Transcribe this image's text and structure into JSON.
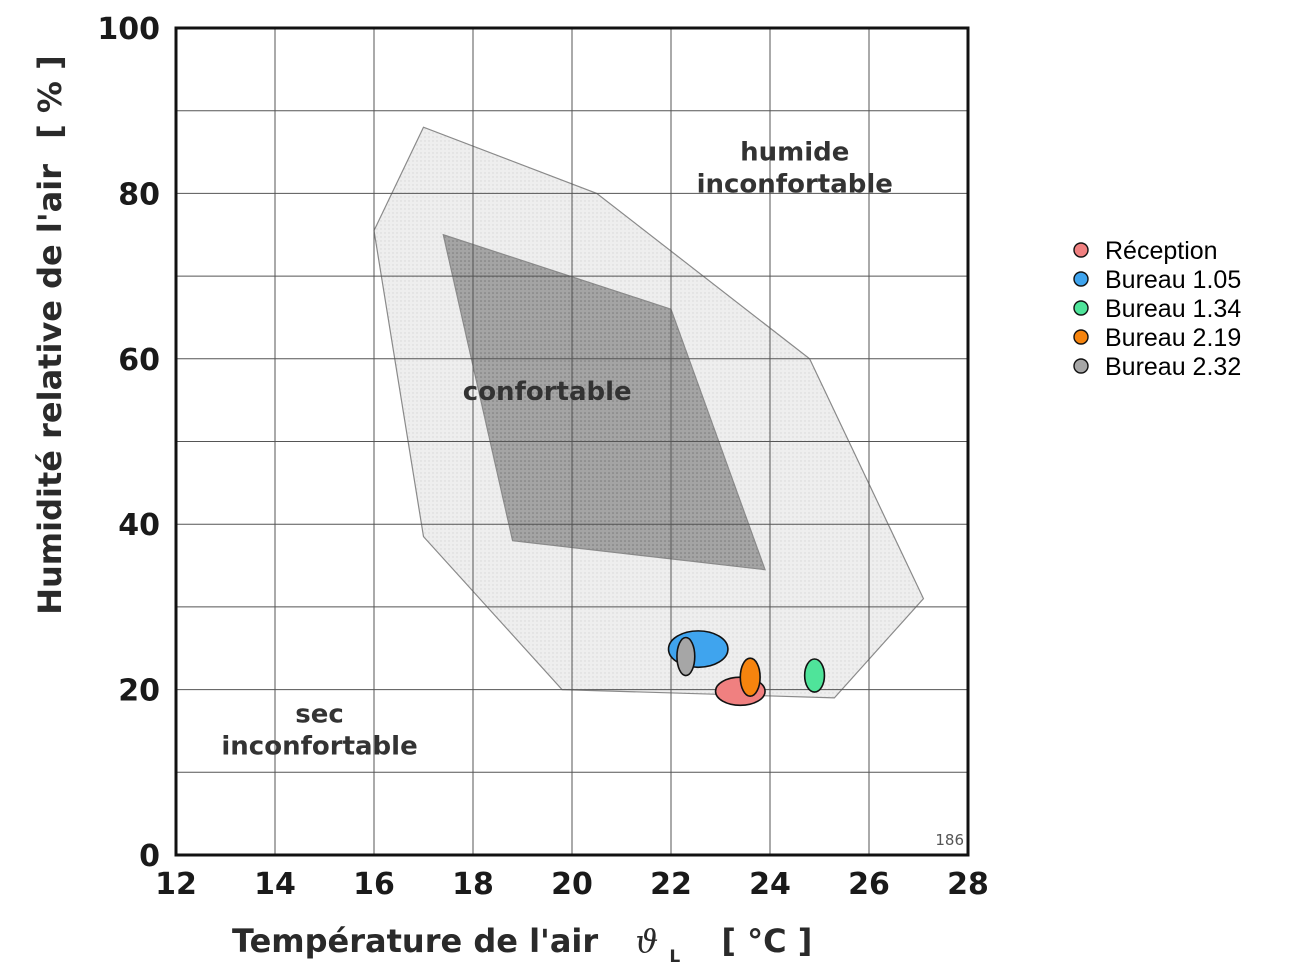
{
  "chart_data": {
    "type": "scatter",
    "xlabel": "Température de l'air",
    "xlabel_symbol": "ϑ",
    "xlabel_subscript": "L",
    "xlabel_unit": "[ °C ]",
    "ylabel": "Humidité relative de l'air",
    "ylabel_unit": "[ % ]",
    "xlim": [
      12,
      28
    ],
    "ylim": [
      0,
      100
    ],
    "x_ticks": [
      12,
      14,
      16,
      18,
      20,
      22,
      24,
      26,
      28
    ],
    "y_ticks": [
      0,
      20,
      40,
      60,
      80,
      100
    ],
    "grid": true,
    "legend_position": "right",
    "figure_ref": "186",
    "zones": [
      {
        "label": [
          "humide",
          "inconfortable"
        ],
        "label_anchor": [
          24.5,
          84
        ],
        "color": "#ececec",
        "polygon": [
          [
            16,
            75.5
          ],
          [
            17,
            88
          ],
          [
            20.5,
            80
          ],
          [
            24.8,
            60
          ],
          [
            27.1,
            31
          ],
          [
            25.3,
            19
          ],
          [
            19.8,
            20
          ],
          [
            17,
            38.5
          ]
        ]
      },
      {
        "label": [
          "confortable"
        ],
        "label_anchor": [
          19.5,
          55
        ],
        "color": "#9a9a9a",
        "polygon": [
          [
            17.4,
            75
          ],
          [
            22,
            66
          ],
          [
            23.9,
            34.5
          ],
          [
            18.8,
            38
          ]
        ]
      },
      {
        "label": [
          "sec",
          "inconfortable"
        ],
        "label_anchor": [
          14.9,
          16
        ],
        "color": null,
        "polygon": null
      }
    ],
    "series": [
      {
        "name": "Réception",
        "color": "#f08080",
        "x": 23.4,
        "y": 19.8,
        "x_spread": 0.5,
        "y_spread": 1.7
      },
      {
        "name": "Bureau 1.05",
        "color": "#3fa4ee",
        "x": 22.55,
        "y": 24.9,
        "x_spread": 0.6,
        "y_spread": 2.2
      },
      {
        "name": "Bureau 1.34",
        "color": "#4fe49a",
        "x": 24.9,
        "y": 21.7,
        "x_spread": 0.2,
        "y_spread": 2.0
      },
      {
        "name": "Bureau 2.19",
        "color": "#f6840e",
        "x": 23.6,
        "y": 21.5,
        "x_spread": 0.2,
        "y_spread": 2.3
      },
      {
        "name": "Bureau 2.32",
        "color": "#a6a6a6",
        "x": 22.3,
        "y": 24.0,
        "x_spread": 0.18,
        "y_spread": 2.3
      }
    ]
  }
}
